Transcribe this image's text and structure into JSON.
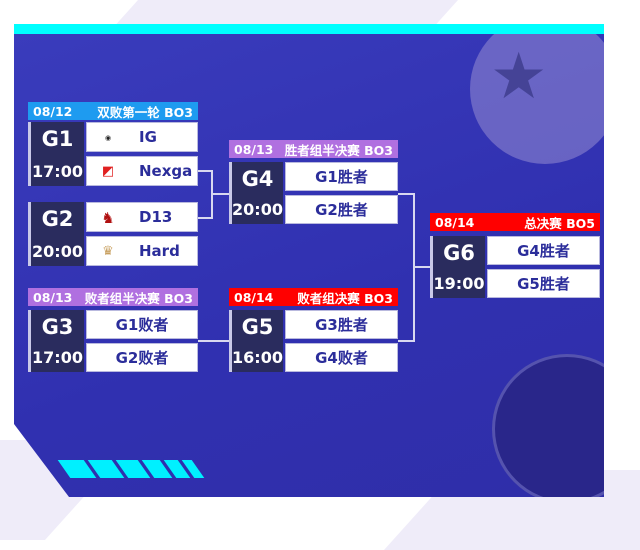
{
  "colors": {
    "header_blue": "#1e9bf0",
    "header_purple": "#b070e0",
    "header_red": "#ff0000",
    "accent": "#00ffff",
    "panel": "#3333b0"
  },
  "round1": {
    "header": {
      "date": "08/12",
      "title": "双败第一轮  BO3"
    },
    "games": [
      {
        "id": "G1",
        "time": "17:00",
        "teams": [
          {
            "name": "IG",
            "logo": "ig-logo"
          },
          {
            "name": "Nexga",
            "logo": "nexga-logo"
          }
        ]
      },
      {
        "id": "G2",
        "time": "20:00",
        "teams": [
          {
            "name": "D13",
            "logo": "d13-logo"
          },
          {
            "name": "Hard",
            "logo": "hard-logo"
          }
        ]
      }
    ]
  },
  "upper_semi": {
    "header": {
      "date": "08/13",
      "title": "胜者组半决赛  BO3"
    },
    "game": {
      "id": "G4",
      "time": "20:00",
      "teams": [
        "G1胜者",
        "G2胜者"
      ]
    }
  },
  "lower_semi": {
    "header": {
      "date": "08/13",
      "title": "败者组半决赛  BO3"
    },
    "game": {
      "id": "G3",
      "time": "17:00",
      "teams": [
        "G1败者",
        "G2败者"
      ]
    }
  },
  "lower_final": {
    "header": {
      "date": "08/14",
      "title": "败者组决赛  BO3"
    },
    "game": {
      "id": "G5",
      "time": "16:00",
      "teams": [
        "G3胜者",
        "G4败者"
      ]
    }
  },
  "grand_final": {
    "header": {
      "date": "08/14",
      "title": "总决赛  BO5"
    },
    "game": {
      "id": "G6",
      "time": "19:00",
      "teams": [
        "G4胜者",
        "G5胜者"
      ]
    }
  }
}
